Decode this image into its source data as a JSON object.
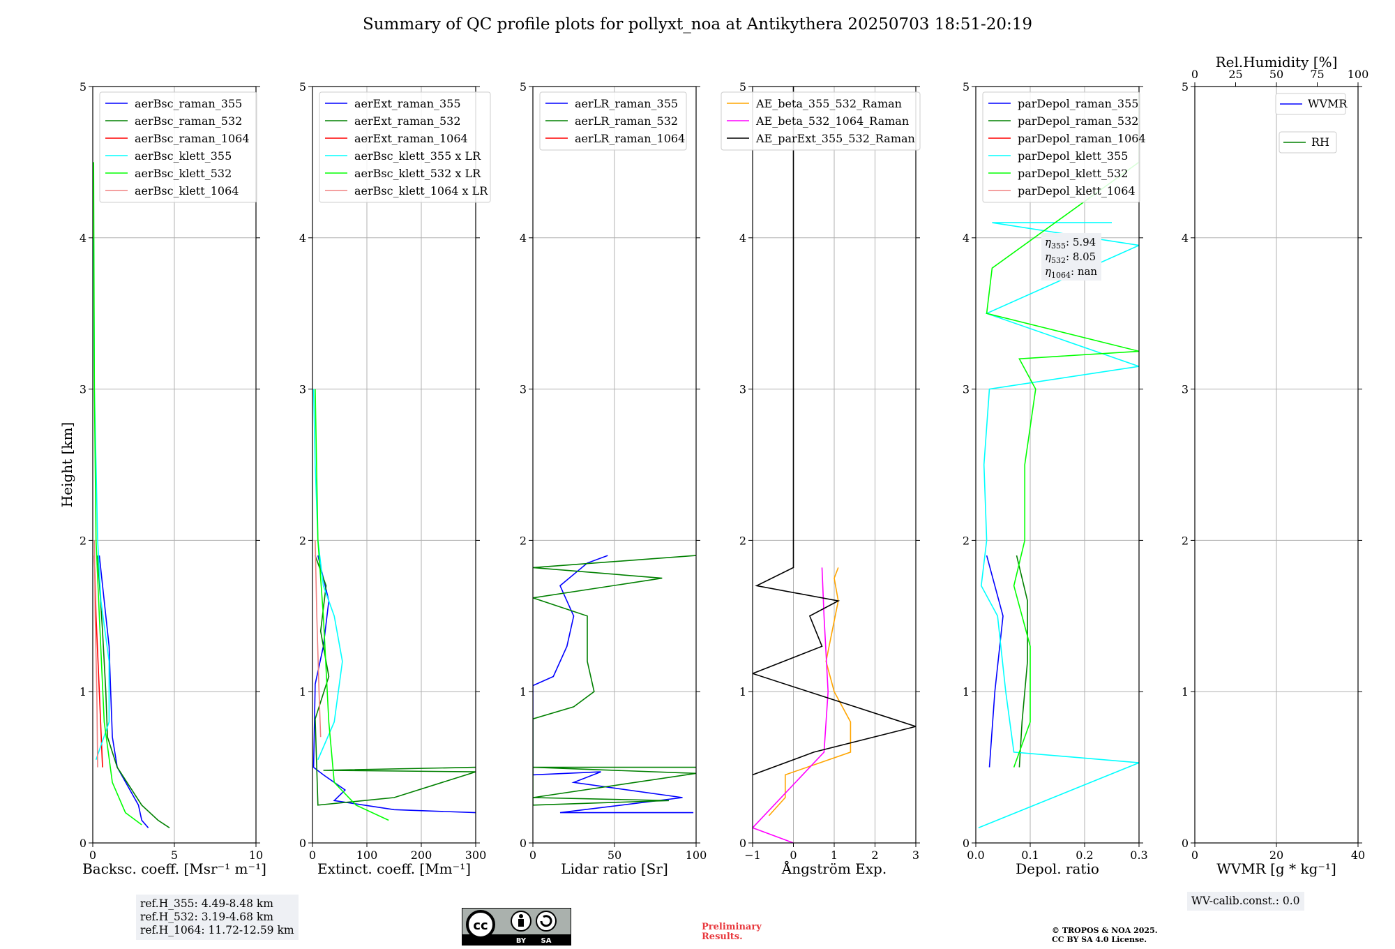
{
  "title": "Summary of QC profile plots for pollyxt_noa at Antikythera 20250703 18:51-20:19",
  "ylabel": "Height [km]",
  "yticks": [
    "0",
    "1",
    "2",
    "3",
    "4",
    "5"
  ],
  "info": {
    "ref_h": [
      "ref.H_355: 4.49-8.48 km",
      "ref.H_532: 3.19-4.68 km",
      "ref.H_1064: 11.72-12.59 km"
    ],
    "eta": [
      "355: 5.94",
      "532: 8.05",
      "1064: nan"
    ],
    "wv_calib": "WV-calib.const.: 0.0",
    "license_badge": [
      "BY",
      "SA"
    ],
    "preliminary": [
      "Preliminary",
      "Results."
    ],
    "copyright": [
      "© TROPOS & NOA 2025.",
      "CC BY SA 4.0 License."
    ]
  },
  "colors": {
    "blue": "#0000ff",
    "green": "#008000",
    "red": "#ff0000",
    "cyan": "#00ffff",
    "lime": "#00ff00",
    "salmon": "#f08080",
    "orange": "#ffa500",
    "magenta": "#ff00ff",
    "black": "#000000"
  },
  "chart_data": [
    {
      "type": "line",
      "xlabel": "Backsc. coeff. [Msr⁻¹ m⁻¹]",
      "xlim": [
        0,
        10
      ],
      "ylim": [
        0,
        5
      ],
      "xticks": [
        "0",
        "5",
        "10"
      ],
      "series": [
        {
          "name": "aerBsc_raman_355",
          "color": "blue",
          "points": [
            [
              3.4,
              0.1
            ],
            [
              3.0,
              0.15
            ],
            [
              2.8,
              0.25
            ],
            [
              1.5,
              0.5
            ],
            [
              1.2,
              0.7
            ],
            [
              1.1,
              1.0
            ],
            [
              1.0,
              1.3
            ],
            [
              0.7,
              1.6
            ],
            [
              0.4,
              1.9
            ]
          ]
        },
        {
          "name": "aerBsc_raman_532",
          "color": "green",
          "points": [
            [
              4.7,
              0.1
            ],
            [
              4.0,
              0.15
            ],
            [
              3.0,
              0.25
            ],
            [
              1.5,
              0.5
            ],
            [
              0.9,
              0.7
            ],
            [
              0.8,
              1.0
            ],
            [
              0.6,
              1.4
            ],
            [
              0.3,
              1.9
            ]
          ]
        },
        {
          "name": "aerBsc_raman_1064",
          "color": "red",
          "points": [
            [
              0.6,
              0.5
            ],
            [
              0.4,
              1.0
            ],
            [
              0.2,
              1.5
            ],
            [
              0.1,
              1.9
            ]
          ]
        },
        {
          "name": "aerBsc_klett_355",
          "color": "cyan",
          "points": [
            [
              0.2,
              0.55
            ],
            [
              1.0,
              0.8
            ],
            [
              1.0,
              1.2
            ],
            [
              0.5,
              1.6
            ],
            [
              0.3,
              2.0
            ],
            [
              0.2,
              2.5
            ],
            [
              0.1,
              3.0
            ],
            [
              0.05,
              4.0
            ]
          ]
        },
        {
          "name": "aerBsc_klett_532",
          "color": "lime",
          "points": [
            [
              3.0,
              0.12
            ],
            [
              2.0,
              0.2
            ],
            [
              1.2,
              0.4
            ],
            [
              0.7,
              0.8
            ],
            [
              0.4,
              1.5
            ],
            [
              0.2,
              2.0
            ],
            [
              0.1,
              3.0
            ],
            [
              0.05,
              4.5
            ]
          ]
        },
        {
          "name": "aerBsc_klett_1064",
          "color": "salmon",
          "points": [
            [
              0.3,
              0.5
            ],
            [
              0.25,
              1.0
            ],
            [
              0.15,
              1.5
            ],
            [
              0.1,
              2.0
            ]
          ]
        }
      ]
    },
    {
      "type": "line",
      "xlabel": "Extinct. coeff. [Mm⁻¹]",
      "xlim": [
        0,
        300
      ],
      "ylim": [
        0,
        5
      ],
      "xticks": [
        "0",
        "100",
        "200",
        "300"
      ],
      "series": [
        {
          "name": "aerExt_raman_355",
          "color": "blue",
          "points": [
            [
              300,
              0.2
            ],
            [
              150,
              0.22
            ],
            [
              40,
              0.28
            ],
            [
              60,
              0.35
            ],
            [
              20,
              0.45
            ],
            [
              2,
              0.5
            ],
            [
              5,
              1.05
            ],
            [
              20,
              1.3
            ],
            [
              30,
              1.6
            ],
            [
              10,
              1.9
            ]
          ]
        },
        {
          "name": "aerExt_raman_532",
          "color": "green",
          "points": [
            [
              300,
              0.5
            ],
            [
              20,
              0.48
            ],
            [
              300,
              0.47
            ],
            [
              150,
              0.3
            ],
            [
              10,
              0.25
            ],
            [
              5,
              0.82
            ],
            [
              30,
              1.1
            ],
            [
              15,
              1.4
            ],
            [
              25,
              1.7
            ],
            [
              15,
              1.8
            ],
            [
              5,
              1.9
            ]
          ]
        },
        {
          "name": "aerExt_raman_1064",
          "color": "red",
          "points": []
        },
        {
          "name": "aerBsc_klett_355 x LR",
          "color": "cyan",
          "points": [
            [
              10,
              0.55
            ],
            [
              40,
              0.8
            ],
            [
              55,
              1.2
            ],
            [
              40,
              1.5
            ],
            [
              20,
              1.7
            ],
            [
              10,
              2.0
            ],
            [
              5,
              2.5
            ],
            [
              2,
              3.0
            ]
          ]
        },
        {
          "name": "aerBsc_klett_532 x LR",
          "color": "lime",
          "points": [
            [
              140,
              0.15
            ],
            [
              80,
              0.25
            ],
            [
              40,
              0.4
            ],
            [
              30,
              0.8
            ],
            [
              20,
              1.5
            ],
            [
              10,
              2.0
            ],
            [
              5,
              3.0
            ]
          ]
        },
        {
          "name": "aerBsc_klett_1064 x LR",
          "color": "salmon",
          "points": [
            [
              15,
              0.7
            ],
            [
              12,
              1.0
            ],
            [
              8,
              1.5
            ],
            [
              5,
              2.0
            ]
          ]
        }
      ]
    },
    {
      "type": "line",
      "xlabel": "Lidar ratio [Sr]",
      "xlim": [
        0,
        120
      ],
      "ylim": [
        0,
        5
      ],
      "xticks": [
        "0",
        "50",
        "100"
      ],
      "series": [
        {
          "name": "aerLR_raman_355",
          "color": "blue",
          "points": [
            [
              118,
              0.2
            ],
            [
              20,
              0.2
            ],
            [
              110,
              0.3
            ],
            [
              30,
              0.4
            ],
            [
              50,
              0.47
            ],
            [
              0,
              0.45
            ],
            [
              0,
              1.04
            ],
            [
              15,
              1.1
            ],
            [
              25,
              1.3
            ],
            [
              30,
              1.5
            ],
            [
              20,
              1.7
            ],
            [
              40,
              1.85
            ],
            [
              55,
              1.9
            ]
          ]
        },
        {
          "name": "aerLR_raman_532",
          "color": "green",
          "points": [
            [
              120,
              0.5
            ],
            [
              0,
              0.5
            ],
            [
              120,
              0.46
            ],
            [
              0,
              0.3
            ],
            [
              100,
              0.28
            ],
            [
              0,
              0.25
            ],
            [
              0,
              0.82
            ],
            [
              30,
              0.9
            ],
            [
              45,
              1.0
            ],
            [
              40,
              1.2
            ],
            [
              40,
              1.5
            ],
            [
              0,
              1.62
            ],
            [
              95,
              1.75
            ],
            [
              0,
              1.82
            ],
            [
              120,
              1.9
            ]
          ]
        },
        {
          "name": "aerLR_raman_1064",
          "color": "red",
          "points": []
        }
      ]
    },
    {
      "type": "line",
      "xlabel": "Ångström Exp.",
      "xlim": [
        -1,
        3
      ],
      "ylim": [
        0,
        5
      ],
      "xticks": [
        "−1",
        "0",
        "1",
        "2",
        "3"
      ],
      "series": [
        {
          "name": "AE_beta_355_532_Raman",
          "color": "orange",
          "points": [
            [
              -0.6,
              0.18
            ],
            [
              -0.2,
              0.3
            ],
            [
              -0.2,
              0.45
            ],
            [
              1.4,
              0.6
            ],
            [
              1.4,
              0.8
            ],
            [
              1.0,
              1.0
            ],
            [
              0.8,
              1.2
            ],
            [
              1.1,
              1.6
            ],
            [
              1.0,
              1.75
            ],
            [
              1.1,
              1.82
            ]
          ]
        },
        {
          "name": "AE_beta_532_1064_Raman",
          "color": "magenta",
          "points": [
            [
              0,
              0
            ],
            [
              -1,
              0.1
            ],
            [
              0.75,
              0.6
            ],
            [
              0.85,
              1.0
            ],
            [
              0.75,
              1.5
            ],
            [
              0.7,
              1.82
            ]
          ]
        },
        {
          "name": "AE_parExt_355_532_Raman",
          "color": "black",
          "points": [
            [
              -1,
              0.45
            ],
            [
              0.5,
              0.6
            ],
            [
              3,
              0.77
            ],
            [
              -1,
              1.12
            ],
            [
              0.7,
              1.3
            ],
            [
              0.4,
              1.5
            ],
            [
              1.1,
              1.6
            ],
            [
              -0.9,
              1.7
            ],
            [
              0,
              1.82
            ],
            [
              0,
              5
            ]
          ]
        }
      ]
    },
    {
      "type": "line",
      "xlabel": "Depol. ratio",
      "xlim": [
        0,
        0.3
      ],
      "ylim": [
        0,
        5
      ],
      "xticks": [
        "0.0",
        "0.1",
        "0.2",
        "0.3"
      ],
      "series": [
        {
          "name": "parDepol_raman_355",
          "color": "blue",
          "points": [
            [
              0.025,
              0.5
            ],
            [
              0.035,
              1.0
            ],
            [
              0.05,
              1.5
            ],
            [
              0.02,
              1.9
            ]
          ]
        },
        {
          "name": "parDepol_raman_532",
          "color": "green",
          "points": [
            [
              0.08,
              0.5
            ],
            [
              0.085,
              0.8
            ],
            [
              0.095,
              1.2
            ],
            [
              0.095,
              1.6
            ],
            [
              0.075,
              1.9
            ]
          ]
        },
        {
          "name": "parDepol_raman_1064",
          "color": "red",
          "points": []
        },
        {
          "name": "parDepol_klett_355",
          "color": "cyan",
          "points": [
            [
              0.005,
              0.1
            ],
            [
              0.3,
              0.53
            ],
            [
              0.07,
              0.6
            ],
            [
              0.055,
              1.0
            ],
            [
              0.04,
              1.5
            ],
            [
              0.01,
              1.7
            ],
            [
              0.02,
              2.0
            ],
            [
              0.015,
              2.5
            ],
            [
              0.025,
              3.0
            ],
            [
              0.3,
              3.15
            ],
            [
              0.02,
              3.5
            ],
            [
              0.3,
              3.95
            ],
            [
              0.03,
              4.1
            ],
            [
              0.25,
              4.1
            ]
          ]
        },
        {
          "name": "parDepol_klett_532",
          "color": "lime",
          "points": [
            [
              0.07,
              0.5
            ],
            [
              0.1,
              0.8
            ],
            [
              0.1,
              1.3
            ],
            [
              0.07,
              1.7
            ],
            [
              0.09,
              2.0
            ],
            [
              0.09,
              2.5
            ],
            [
              0.11,
              3.0
            ],
            [
              0.08,
              3.2
            ],
            [
              0.3,
              3.25
            ],
            [
              0.02,
              3.5
            ],
            [
              0.03,
              3.8
            ],
            [
              0.3,
              4.5
            ],
            [
              0.3,
              4.95
            ]
          ]
        },
        {
          "name": "parDepol_klett_1064",
          "color": "salmon",
          "points": []
        }
      ]
    },
    {
      "type": "line",
      "xlabel": "WVMR [g * kg⁻¹]",
      "xlim": [
        0,
        50
      ],
      "ylim": [
        0,
        5
      ],
      "xticks": [
        "0",
        "20",
        "40"
      ],
      "top_axis": {
        "label": "Rel.Humidity [%]",
        "xlim": [
          0,
          100
        ],
        "xticks": [
          "0",
          "25",
          "50",
          "75",
          "100"
        ]
      },
      "series": [
        {
          "name": "WVMR",
          "color": "blue",
          "points": []
        },
        {
          "name": "RH",
          "color": "green",
          "points": []
        }
      ]
    }
  ]
}
